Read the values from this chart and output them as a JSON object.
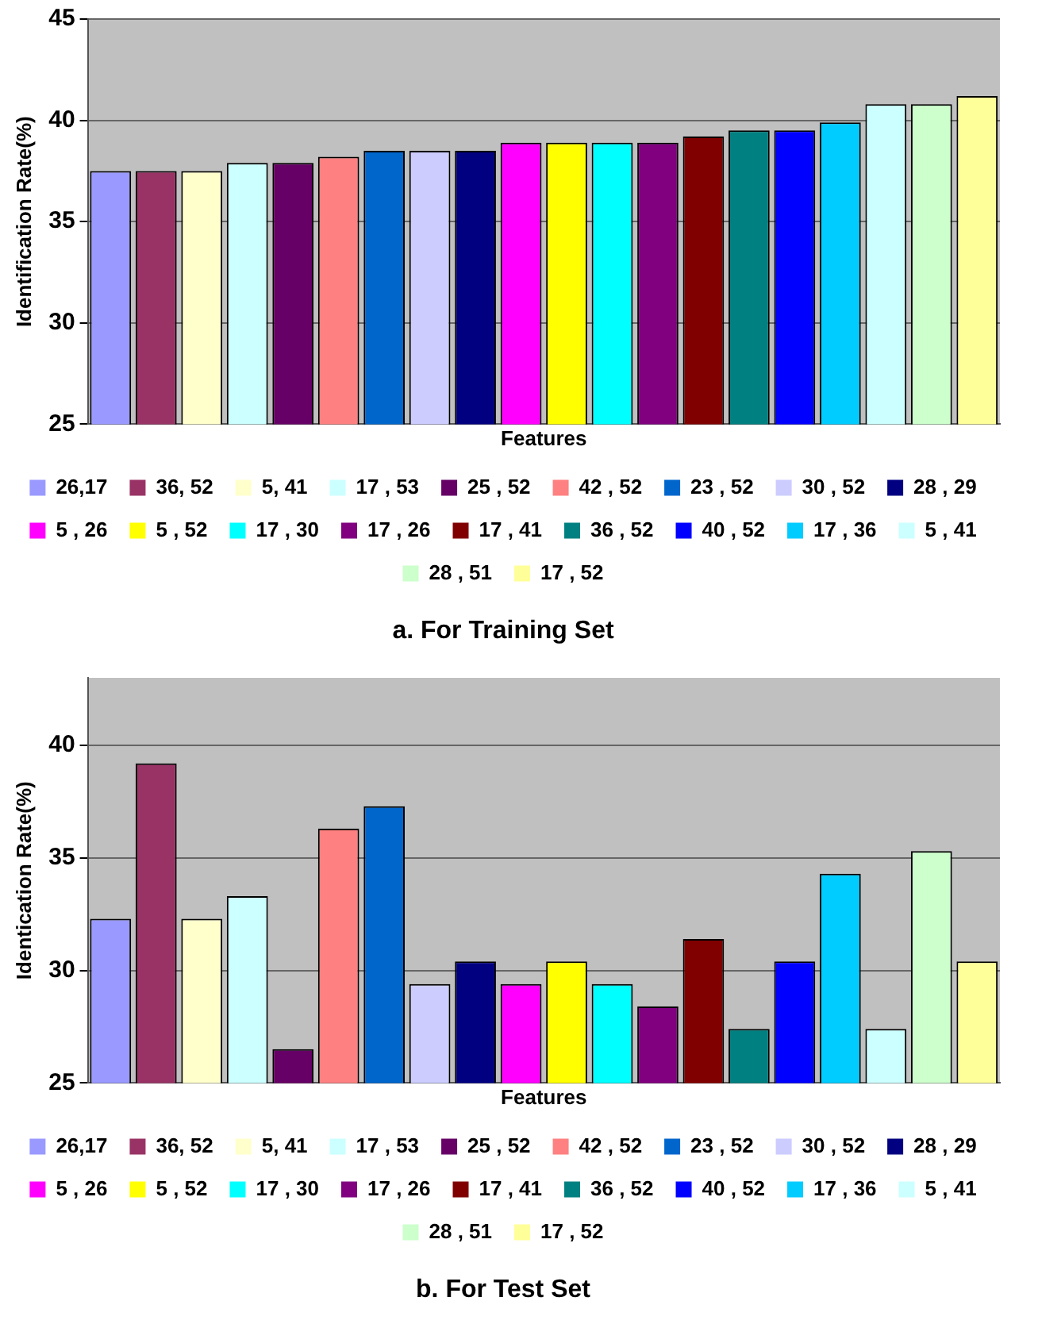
{
  "chart_data": [
    {
      "type": "bar",
      "title": "a. For Training Set",
      "xlabel": "Features",
      "ylabel": "Identification Rate(%)",
      "ylim": [
        25,
        45
      ],
      "yticks": [
        25,
        30,
        35,
        40,
        45
      ],
      "grid": "y",
      "legend": "bottom",
      "tick_labels": "y",
      "categories": [
        null,
        null,
        null,
        null,
        null,
        null,
        null,
        null,
        null,
        null,
        null,
        null,
        null,
        null,
        null,
        null,
        null,
        null,
        null,
        null
      ],
      "series": [
        {
          "name": "26,17",
          "color": "#9999ff",
          "values": [
            37.5,
            null,
            null,
            null,
            null,
            null,
            null,
            null,
            null,
            null,
            null,
            null,
            null,
            null,
            null,
            null,
            null,
            null,
            null,
            null
          ]
        },
        {
          "name": "36, 52",
          "color": "#993366",
          "values": [
            null,
            37.5,
            null,
            null,
            null,
            null,
            null,
            null,
            null,
            null,
            null,
            null,
            null,
            null,
            null,
            null,
            null,
            null,
            null,
            null
          ]
        },
        {
          "name": "5, 41",
          "color": "#ffffcc",
          "values": [
            null,
            null,
            37.5,
            null,
            null,
            null,
            null,
            null,
            null,
            null,
            null,
            null,
            null,
            null,
            null,
            null,
            null,
            null,
            null,
            null
          ]
        },
        {
          "name": "17 , 53",
          "color": "#ccffff",
          "values": [
            null,
            null,
            null,
            37.9,
            null,
            null,
            null,
            null,
            null,
            null,
            null,
            null,
            null,
            null,
            null,
            null,
            null,
            null,
            null,
            null
          ]
        },
        {
          "name": "25 , 52",
          "color": "#660066",
          "values": [
            null,
            null,
            null,
            null,
            37.9,
            null,
            null,
            null,
            null,
            null,
            null,
            null,
            null,
            null,
            null,
            null,
            null,
            null,
            null,
            null
          ]
        },
        {
          "name": "42 , 52",
          "color": "#ff8080",
          "values": [
            null,
            null,
            null,
            null,
            null,
            38.2,
            null,
            null,
            null,
            null,
            null,
            null,
            null,
            null,
            null,
            null,
            null,
            null,
            null,
            null
          ]
        },
        {
          "name": "23 , 52",
          "color": "#0066cc",
          "values": [
            null,
            null,
            null,
            null,
            null,
            null,
            38.5,
            null,
            null,
            null,
            null,
            null,
            null,
            null,
            null,
            null,
            null,
            null,
            null,
            null
          ]
        },
        {
          "name": "30 , 52",
          "color": "#ccccff",
          "values": [
            null,
            null,
            null,
            null,
            null,
            null,
            null,
            38.5,
            null,
            null,
            null,
            null,
            null,
            null,
            null,
            null,
            null,
            null,
            null,
            null
          ]
        },
        {
          "name": "28 , 29",
          "color": "#000080",
          "values": [
            null,
            null,
            null,
            null,
            null,
            null,
            null,
            null,
            38.5,
            null,
            null,
            null,
            null,
            null,
            null,
            null,
            null,
            null,
            null,
            null
          ]
        },
        {
          "name": "5 , 26",
          "color": "#ff00ff",
          "values": [
            null,
            null,
            null,
            null,
            null,
            null,
            null,
            null,
            null,
            38.9,
            null,
            null,
            null,
            null,
            null,
            null,
            null,
            null,
            null,
            null
          ]
        },
        {
          "name": "5 , 52",
          "color": "#ffff00",
          "values": [
            null,
            null,
            null,
            null,
            null,
            null,
            null,
            null,
            null,
            null,
            38.9,
            null,
            null,
            null,
            null,
            null,
            null,
            null,
            null,
            null
          ]
        },
        {
          "name": "17 , 30",
          "color": "#00ffff",
          "values": [
            null,
            null,
            null,
            null,
            null,
            null,
            null,
            null,
            null,
            null,
            null,
            38.9,
            null,
            null,
            null,
            null,
            null,
            null,
            null,
            null
          ]
        },
        {
          "name": "17 , 26",
          "color": "#800080",
          "values": [
            null,
            null,
            null,
            null,
            null,
            null,
            null,
            null,
            null,
            null,
            null,
            null,
            38.9,
            null,
            null,
            null,
            null,
            null,
            null,
            null
          ]
        },
        {
          "name": "17 , 41",
          "color": "#800000",
          "values": [
            null,
            null,
            null,
            null,
            null,
            null,
            null,
            null,
            null,
            null,
            null,
            null,
            null,
            39.2,
            null,
            null,
            null,
            null,
            null,
            null
          ]
        },
        {
          "name": "36 , 52",
          "color": "#008080",
          "values": [
            null,
            null,
            null,
            null,
            null,
            null,
            null,
            null,
            null,
            null,
            null,
            null,
            null,
            null,
            39.5,
            null,
            null,
            null,
            null,
            null
          ]
        },
        {
          "name": "40 , 52",
          "color": "#0000ff",
          "values": [
            null,
            null,
            null,
            null,
            null,
            null,
            null,
            null,
            null,
            null,
            null,
            null,
            null,
            null,
            null,
            39.5,
            null,
            null,
            null,
            null
          ]
        },
        {
          "name": "17 , 36",
          "color": "#00ccff",
          "values": [
            null,
            null,
            null,
            null,
            null,
            null,
            null,
            null,
            null,
            null,
            null,
            null,
            null,
            null,
            null,
            null,
            39.9,
            null,
            null,
            null
          ]
        },
        {
          "name": "5 , 41",
          "color": "#ccffff",
          "values": [
            null,
            null,
            null,
            null,
            null,
            null,
            null,
            null,
            null,
            null,
            null,
            null,
            null,
            null,
            null,
            null,
            null,
            40.8,
            null,
            null
          ]
        },
        {
          "name": "28 , 51",
          "color": "#ccffcc",
          "values": [
            null,
            null,
            null,
            null,
            null,
            null,
            null,
            null,
            null,
            null,
            null,
            null,
            null,
            null,
            null,
            null,
            null,
            null,
            40.8,
            null
          ]
        },
        {
          "name": "17 , 52",
          "color": "#ffff99",
          "values": [
            null,
            null,
            null,
            null,
            null,
            null,
            null,
            null,
            null,
            null,
            null,
            null,
            null,
            null,
            null,
            null,
            null,
            null,
            null,
            41.2
          ]
        }
      ]
    },
    {
      "type": "bar",
      "title": "b. For Test Set",
      "xlabel": "Features",
      "ylabel": "Identication Rate(%)",
      "ylim": [
        25,
        43
      ],
      "yticks": [
        25,
        30,
        35,
        40
      ],
      "grid": "y",
      "legend": "bottom",
      "tick_labels": "y",
      "categories": [
        null,
        null,
        null,
        null,
        null,
        null,
        null,
        null,
        null,
        null,
        null,
        null,
        null,
        null,
        null,
        null,
        null,
        null,
        null,
        null
      ],
      "series": [
        {
          "name": "26,17",
          "color": "#9999ff",
          "values": [
            32.3,
            null,
            null,
            null,
            null,
            null,
            null,
            null,
            null,
            null,
            null,
            null,
            null,
            null,
            null,
            null,
            null,
            null,
            null,
            null
          ]
        },
        {
          "name": "36, 52",
          "color": "#993366",
          "values": [
            null,
            39.2,
            null,
            null,
            null,
            null,
            null,
            null,
            null,
            null,
            null,
            null,
            null,
            null,
            null,
            null,
            null,
            null,
            null,
            null
          ]
        },
        {
          "name": "5, 41",
          "color": "#ffffcc",
          "values": [
            null,
            null,
            32.3,
            null,
            null,
            null,
            null,
            null,
            null,
            null,
            null,
            null,
            null,
            null,
            null,
            null,
            null,
            null,
            null,
            null
          ]
        },
        {
          "name": "17 , 53",
          "color": "#ccffff",
          "values": [
            null,
            null,
            null,
            33.3,
            null,
            null,
            null,
            null,
            null,
            null,
            null,
            null,
            null,
            null,
            null,
            null,
            null,
            null,
            null,
            null
          ]
        },
        {
          "name": "25 , 52",
          "color": "#660066",
          "values": [
            null,
            null,
            null,
            null,
            26.5,
            null,
            null,
            null,
            null,
            null,
            null,
            null,
            null,
            null,
            null,
            null,
            null,
            null,
            null,
            null
          ]
        },
        {
          "name": "42 , 52",
          "color": "#ff8080",
          "values": [
            null,
            null,
            null,
            null,
            null,
            36.3,
            null,
            null,
            null,
            null,
            null,
            null,
            null,
            null,
            null,
            null,
            null,
            null,
            null,
            null
          ]
        },
        {
          "name": "23 , 52",
          "color": "#0066cc",
          "values": [
            null,
            null,
            null,
            null,
            null,
            null,
            37.3,
            null,
            null,
            null,
            null,
            null,
            null,
            null,
            null,
            null,
            null,
            null,
            null,
            null
          ]
        },
        {
          "name": "30 , 52",
          "color": "#ccccff",
          "values": [
            null,
            null,
            null,
            null,
            null,
            null,
            null,
            29.4,
            null,
            null,
            null,
            null,
            null,
            null,
            null,
            null,
            null,
            null,
            null,
            null
          ]
        },
        {
          "name": "28 , 29",
          "color": "#000080",
          "values": [
            null,
            null,
            null,
            null,
            null,
            null,
            null,
            null,
            30.4,
            null,
            null,
            null,
            null,
            null,
            null,
            null,
            null,
            null,
            null,
            null
          ]
        },
        {
          "name": "5 , 26",
          "color": "#ff00ff",
          "values": [
            null,
            null,
            null,
            null,
            null,
            null,
            null,
            null,
            null,
            29.4,
            null,
            null,
            null,
            null,
            null,
            null,
            null,
            null,
            null,
            null
          ]
        },
        {
          "name": "5 , 52",
          "color": "#ffff00",
          "values": [
            null,
            null,
            null,
            null,
            null,
            null,
            null,
            null,
            null,
            null,
            30.4,
            null,
            null,
            null,
            null,
            null,
            null,
            null,
            null,
            null
          ]
        },
        {
          "name": "17 , 30",
          "color": "#00ffff",
          "values": [
            null,
            null,
            null,
            null,
            null,
            null,
            null,
            null,
            null,
            null,
            null,
            29.4,
            null,
            null,
            null,
            null,
            null,
            null,
            null,
            null
          ]
        },
        {
          "name": "17 , 26",
          "color": "#800080",
          "values": [
            null,
            null,
            null,
            null,
            null,
            null,
            null,
            null,
            null,
            null,
            null,
            null,
            28.4,
            null,
            null,
            null,
            null,
            null,
            null,
            null
          ]
        },
        {
          "name": "17 , 41",
          "color": "#800000",
          "values": [
            null,
            null,
            null,
            null,
            null,
            null,
            null,
            null,
            null,
            null,
            null,
            null,
            null,
            31.4,
            null,
            null,
            null,
            null,
            null,
            null
          ]
        },
        {
          "name": "36 , 52",
          "color": "#008080",
          "values": [
            null,
            null,
            null,
            null,
            null,
            null,
            null,
            null,
            null,
            null,
            null,
            null,
            null,
            null,
            27.4,
            null,
            null,
            null,
            null,
            null
          ]
        },
        {
          "name": "40 , 52",
          "color": "#0000ff",
          "values": [
            null,
            null,
            null,
            null,
            null,
            null,
            null,
            null,
            null,
            null,
            null,
            null,
            null,
            null,
            null,
            30.4,
            null,
            null,
            null,
            null
          ]
        },
        {
          "name": "17 , 36",
          "color": "#00ccff",
          "values": [
            null,
            null,
            null,
            null,
            null,
            null,
            null,
            null,
            null,
            null,
            null,
            null,
            null,
            null,
            null,
            null,
            34.3,
            null,
            null,
            null
          ]
        },
        {
          "name": "5 , 41",
          "color": "#ccffff",
          "values": [
            null,
            null,
            null,
            null,
            null,
            null,
            null,
            null,
            null,
            null,
            null,
            null,
            null,
            null,
            null,
            null,
            null,
            27.4,
            null,
            null
          ]
        },
        {
          "name": "28 , 51",
          "color": "#ccffcc",
          "values": [
            null,
            null,
            null,
            null,
            null,
            null,
            null,
            null,
            null,
            null,
            null,
            null,
            null,
            null,
            null,
            null,
            null,
            null,
            35.3,
            null
          ]
        },
        {
          "name": "17 , 52",
          "color": "#ffff99",
          "values": [
            null,
            null,
            null,
            null,
            null,
            null,
            null,
            null,
            null,
            null,
            null,
            null,
            null,
            null,
            null,
            null,
            null,
            null,
            null,
            30.4
          ]
        }
      ]
    }
  ]
}
